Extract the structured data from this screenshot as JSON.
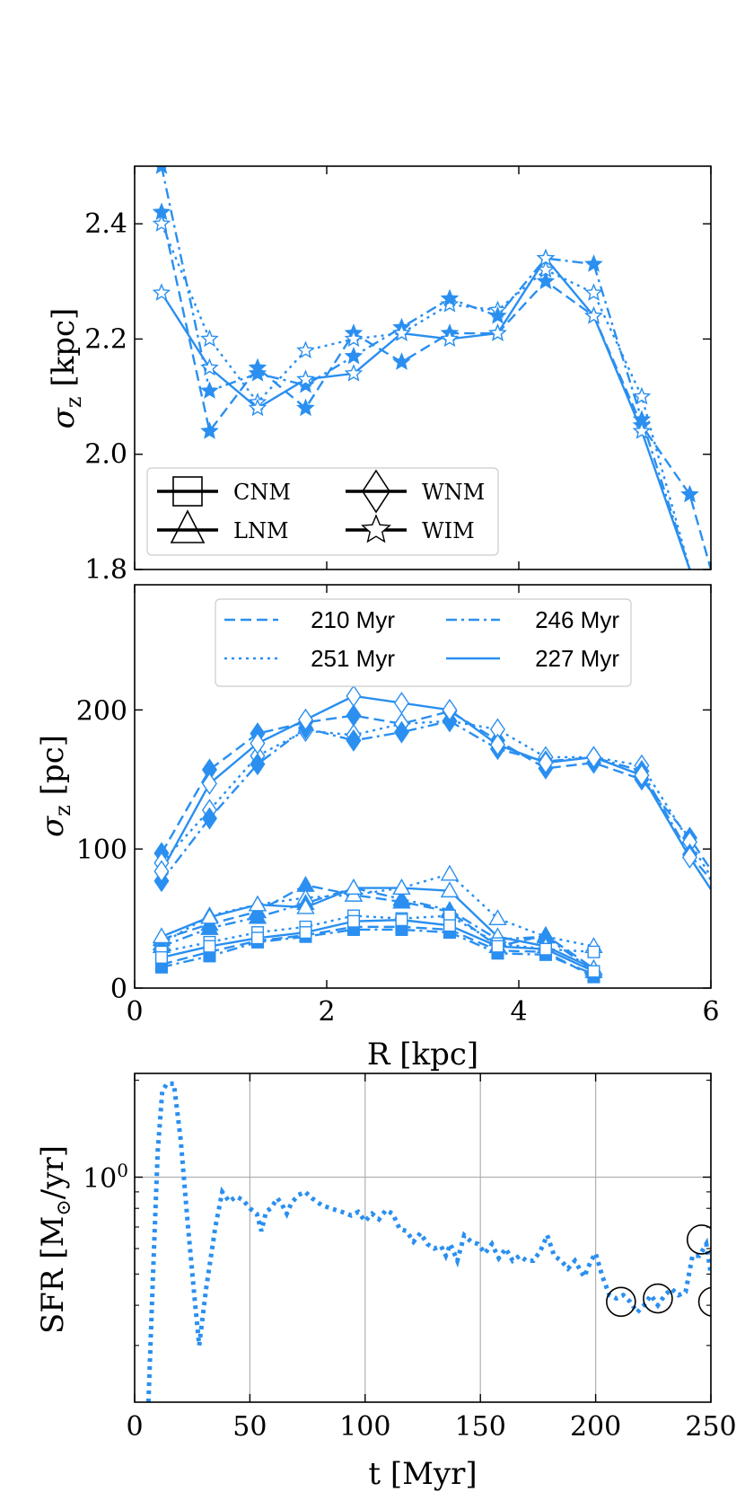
{
  "colors": {
    "series": "#2a8ff0",
    "grid": "#b0b0b0",
    "axis": "#000000",
    "circle": "#000000"
  },
  "chart_data": [
    {
      "id": "top",
      "type": "line",
      "ylabel": "σ_z [kpc]",
      "ylabel_main": "σ",
      "ylabel_sub": "z",
      "ylabel_unit": "[kpc]",
      "xlim": [
        0,
        6
      ],
      "ylim": [
        1.8,
        2.5
      ],
      "yticks": [
        1.8,
        2.0,
        2.2,
        2.4
      ],
      "ytick_labels": [
        "1.8",
        "2.0",
        "2.2",
        "2.4"
      ],
      "xticks": [
        0,
        2,
        4,
        6
      ],
      "marker": "star",
      "x": [
        0.28,
        0.78,
        1.28,
        1.78,
        2.28,
        2.78,
        3.28,
        3.78,
        4.28,
        4.78,
        5.28,
        5.78
      ],
      "series": [
        {
          "name": "210 Myr",
          "dash": "dashed",
          "filled": true,
          "values": [
            2.42,
            2.04,
            2.15,
            2.08,
            2.21,
            2.16,
            2.21,
            2.21,
            2.3,
            2.24,
            2.05,
            1.93
          ],
          "extend": [
            6.0,
            1.8
          ]
        },
        {
          "name": "251 Myr",
          "dash": "dotted",
          "filled": false,
          "values": [
            2.4,
            2.2,
            2.09,
            2.18,
            2.2,
            2.21,
            2.26,
            2.25,
            2.32,
            2.28,
            2.1,
            1.8
          ]
        },
        {
          "name": "246 Myr",
          "dash": "dashdot",
          "filled": true,
          "values": [
            2.5,
            2.11,
            2.14,
            2.12,
            2.17,
            2.22,
            2.27,
            2.24,
            2.34,
            2.33,
            2.06,
            1.8
          ]
        },
        {
          "name": "227 Myr",
          "dash": "solid",
          "filled": false,
          "values": [
            2.28,
            2.15,
            2.08,
            2.13,
            2.14,
            2.21,
            2.2,
            2.21,
            2.34,
            2.24,
            2.04,
            1.8
          ]
        }
      ],
      "legend": {
        "position": "lower-left",
        "entries": [
          {
            "label": "CNM",
            "marker": "square"
          },
          {
            "label": "WNM",
            "marker": "diamond"
          },
          {
            "label": "LNM",
            "marker": "triangle"
          },
          {
            "label": "WIM",
            "marker": "star"
          }
        ]
      }
    },
    {
      "id": "middle",
      "type": "line",
      "ylabel": "σ_z [pc]",
      "ylabel_main": "σ",
      "ylabel_sub": "z",
      "ylabel_unit": "[pc]",
      "xlabel": "R [kpc]",
      "xlim": [
        0,
        6
      ],
      "ylim": [
        0,
        290
      ],
      "yticks": [
        0,
        100,
        200
      ],
      "ytick_labels": [
        "0",
        "100",
        "200"
      ],
      "xticks": [
        0,
        2,
        4,
        6
      ],
      "xtick_labels": [
        "0",
        "2",
        "4",
        "6"
      ],
      "x": [
        0.28,
        0.78,
        1.28,
        1.78,
        2.28,
        2.78,
        3.28,
        3.78,
        4.28,
        4.78,
        5.28,
        5.78
      ],
      "groups": [
        {
          "phase": "WNM",
          "marker": "diamond",
          "series": [
            {
              "name": "210 Myr",
              "dash": "dashed",
              "filled": true,
              "values": [
                97,
                157,
                183,
                191,
                196,
                190,
                199,
                178,
                158,
                162,
                150,
                108
              ],
              "extend": [
                6.0,
                85
              ]
            },
            {
              "name": "251 Myr",
              "dash": "dotted",
              "filled": false,
              "values": [
                90,
                128,
                167,
                185,
                182,
                190,
                192,
                186,
                166,
                166,
                160,
                105
              ],
              "extend": [
                6.0,
                80
              ]
            },
            {
              "name": "246 Myr",
              "dash": "dashdot",
              "filled": true,
              "values": [
                77,
                122,
                161,
                187,
                178,
                184,
                192,
                172,
                163,
                166,
                156,
                96
              ],
              "extend": [
                6.0,
                78
              ]
            },
            {
              "name": "227 Myr",
              "dash": "solid",
              "filled": false,
              "values": [
                84,
                147,
                176,
                193,
                210,
                205,
                200,
                175,
                162,
                166,
                153,
                94
              ],
              "extend": [
                6.0,
                71
              ]
            }
          ]
        },
        {
          "phase": "LNM",
          "marker": "triangle",
          "series": [
            {
              "name": "210 Myr",
              "dash": "dashed",
              "filled": true,
              "values": [
                35,
                46,
                55,
                74,
                67,
                62,
                55,
                30,
                38,
                14
              ]
            },
            {
              "name": "251 Myr",
              "dash": "dotted",
              "filled": false,
              "values": [
                32,
                52,
                60,
                65,
                67,
                72,
                82,
                50,
                37,
                30
              ]
            },
            {
              "name": "246 Myr",
              "dash": "dashdot",
              "filled": true,
              "values": [
                30,
                43,
                51,
                61,
                72,
                64,
                56,
                35,
                37,
                12
              ]
            },
            {
              "name": "227 Myr",
              "dash": "solid",
              "filled": false,
              "values": [
                37,
                51,
                60,
                58,
                72,
                72,
                70,
                37,
                30,
                14
              ]
            }
          ]
        },
        {
          "phase": "CNM",
          "marker": "square",
          "series": [
            {
              "name": "210 Myr",
              "dash": "dashed",
              "filled": true,
              "values": [
                17,
                26,
                34,
                38,
                44,
                44,
                42,
                27,
                26,
                8
              ]
            },
            {
              "name": "251 Myr",
              "dash": "dotted",
              "filled": false,
              "values": [
                26,
                33,
                40,
                44,
                52,
                50,
                52,
                32,
                28,
                26
              ]
            },
            {
              "name": "246 Myr",
              "dash": "dashdot",
              "filled": true,
              "values": [
                15,
                23,
                33,
                37,
                42,
                42,
                40,
                25,
                24,
                10
              ]
            },
            {
              "name": "227 Myr",
              "dash": "solid",
              "filled": false,
              "values": [
                22,
                30,
                36,
                40,
                48,
                49,
                45,
                30,
                28,
                12
              ]
            }
          ]
        }
      ],
      "legend": {
        "position": "upper-center",
        "entries": [
          {
            "label": "210 Myr",
            "dash": "dashed"
          },
          {
            "label": "246 Myr",
            "dash": "dashdot"
          },
          {
            "label": "251 Myr",
            "dash": "dotted"
          },
          {
            "label": "227 Myr",
            "dash": "solid"
          }
        ]
      }
    },
    {
      "id": "bottom",
      "type": "line",
      "ylabel": "SFR [M☉/yr]",
      "ylabel_text": "SFR [M",
      "ylabel_sub": "⊙",
      "ylabel_tail": "/yr]",
      "xlabel": "t [Myr]",
      "ylog": true,
      "grid": true,
      "xlim": [
        0,
        250
      ],
      "ylim": [
        0.2,
        2.1
      ],
      "xticks": [
        0,
        50,
        100,
        150,
        200,
        250
      ],
      "xtick_labels": [
        "0",
        "50",
        "100",
        "150",
        "200",
        "250"
      ],
      "ytick_label_base": "10",
      "ytick_label_exp": "0",
      "series": [
        {
          "name": "SFR",
          "dash": "dotted",
          "t": [
            6,
            8,
            10,
            12,
            14,
            17,
            20,
            23,
            26,
            28,
            31,
            35,
            38,
            41,
            44,
            47,
            50,
            53,
            55,
            57,
            59,
            62,
            64,
            66,
            68,
            71,
            74,
            77,
            81,
            85,
            90,
            94,
            97,
            100,
            103,
            106,
            109,
            112,
            115,
            118,
            121,
            124,
            127,
            130,
            133,
            135,
            137,
            140,
            143,
            146,
            149,
            152,
            155,
            158,
            161,
            164,
            167,
            170,
            173,
            176,
            179,
            182,
            185,
            188,
            191,
            195,
            198,
            200,
            203,
            206,
            209,
            212,
            215,
            218,
            221,
            224,
            227,
            230,
            233,
            236,
            239,
            242,
            245,
            248,
            250
          ],
          "values": [
            0.2,
            0.5,
            1.2,
            1.85,
            1.95,
            1.95,
            1.3,
            0.72,
            0.42,
            0.3,
            0.45,
            0.7,
            0.9,
            0.84,
            0.87,
            0.85,
            0.8,
            0.77,
            0.68,
            0.78,
            0.8,
            0.86,
            0.82,
            0.77,
            0.83,
            0.88,
            0.9,
            0.86,
            0.82,
            0.8,
            0.78,
            0.76,
            0.78,
            0.73,
            0.77,
            0.74,
            0.79,
            0.77,
            0.69,
            0.68,
            0.63,
            0.67,
            0.62,
            0.6,
            0.61,
            0.57,
            0.62,
            0.55,
            0.66,
            0.63,
            0.62,
            0.58,
            0.62,
            0.56,
            0.6,
            0.55,
            0.57,
            0.55,
            0.55,
            0.59,
            0.66,
            0.57,
            0.55,
            0.52,
            0.55,
            0.49,
            0.55,
            0.58,
            0.49,
            0.43,
            0.42,
            0.43,
            0.41,
            0.38,
            0.4,
            0.43,
            0.4,
            0.43,
            0.45,
            0.43,
            0.44,
            0.57,
            0.57,
            0.62,
            0.5
          ]
        }
      ],
      "circled_points": [
        {
          "t": 211,
          "value": 0.41
        },
        {
          "t": 227,
          "value": 0.42
        },
        {
          "t": 246,
          "value": 0.64
        },
        {
          "t": 251,
          "value": 0.41
        }
      ]
    }
  ]
}
